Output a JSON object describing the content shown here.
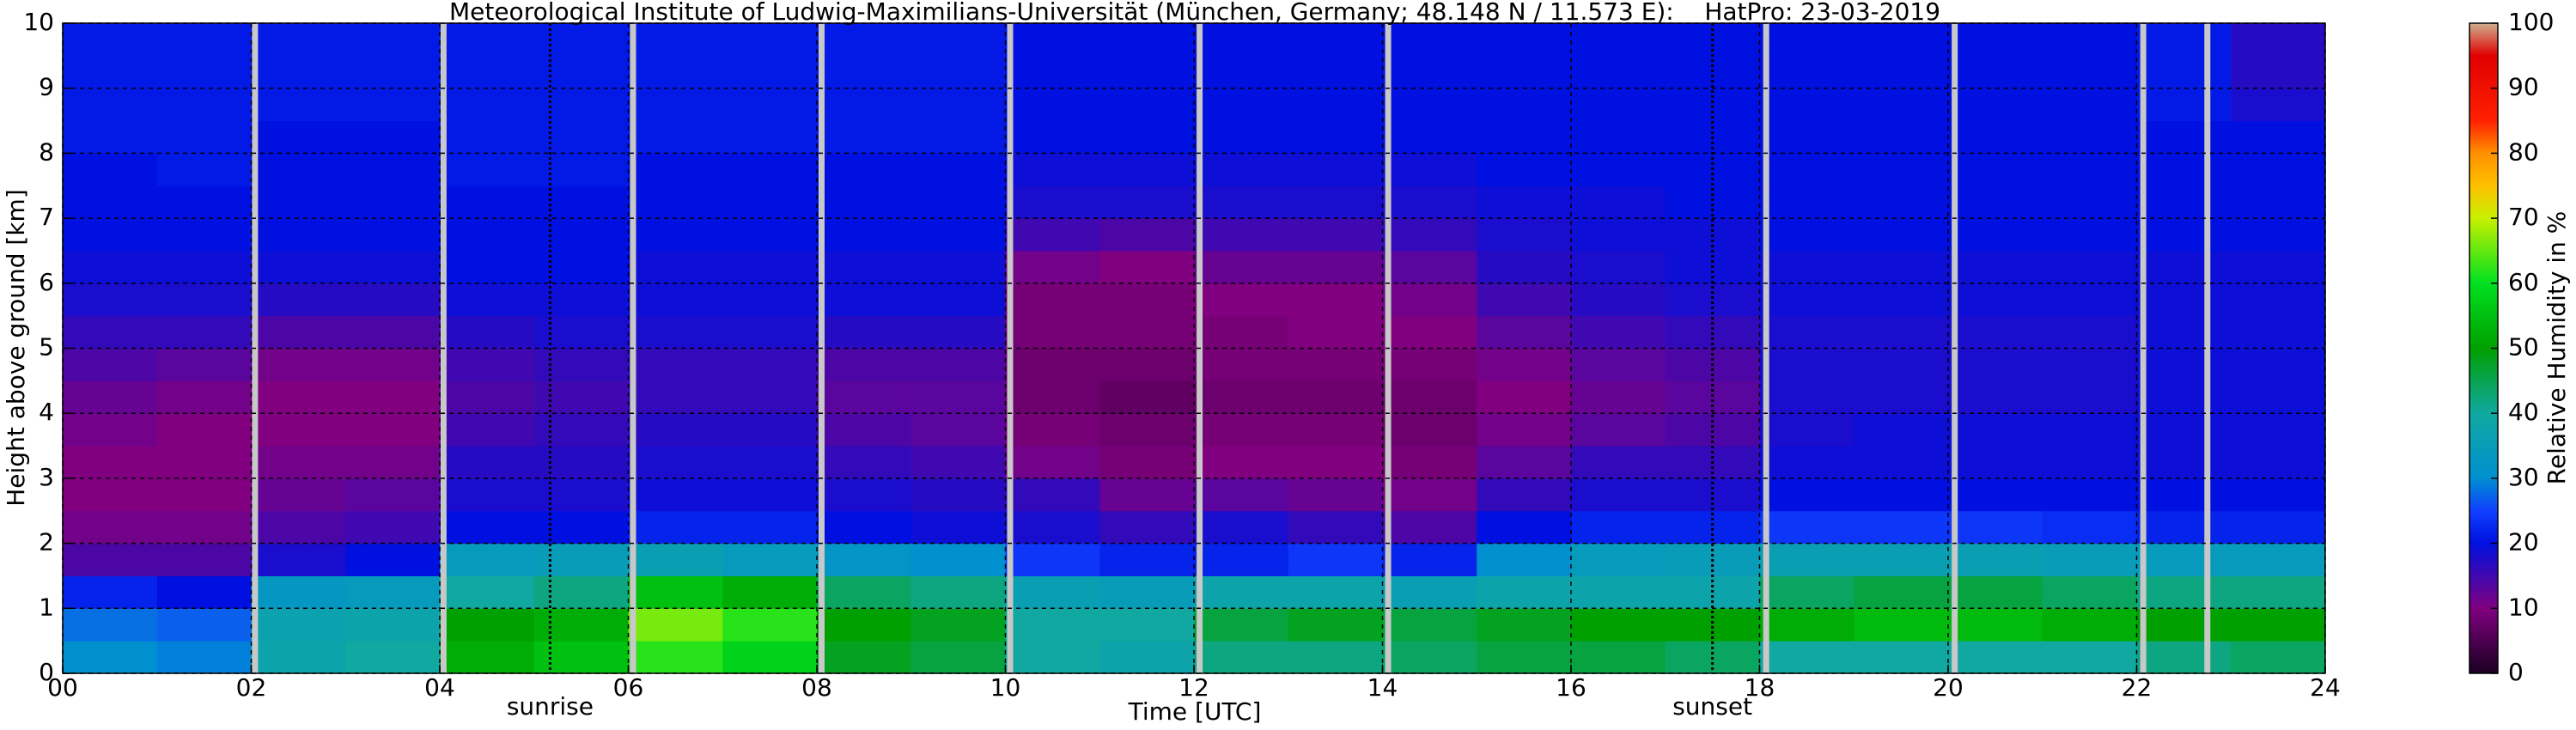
{
  "chart_data": {
    "type": "heatmap",
    "title": "Meteorological Institute of Ludwig-Maximilians-Universität (München, Germany; 48.148 N / 11.573 E):    HatPro: 23-03-2019",
    "xlabel": "Time [UTC]",
    "ylabel": "Height above ground [km]",
    "colorbar_label": "Relative Humidity in %",
    "x": [
      0.5,
      1.5,
      2.5,
      3.5,
      4.5,
      5.5,
      6.5,
      7.5,
      8.5,
      9.5,
      10.5,
      11.5,
      12.5,
      13.5,
      14.5,
      15.5,
      16.5,
      17.5,
      18.5,
      19.5,
      20.5,
      21.5,
      22.5,
      23.5
    ],
    "y": [
      0.25,
      0.75,
      1.25,
      1.75,
      2.25,
      2.75,
      3.25,
      3.75,
      4.25,
      4.75,
      5.25,
      5.75,
      6.25,
      6.75,
      7.25,
      7.75,
      8.25,
      8.75,
      9.25,
      9.75
    ],
    "z": [
      [
        30,
        28,
        22,
        14,
        11,
        10,
        10,
        11,
        12,
        14,
        16,
        18,
        19,
        20,
        20,
        20,
        21,
        21,
        21,
        21
      ],
      [
        29,
        27,
        20,
        14,
        11,
        10,
        10,
        10,
        11,
        13,
        16,
        18,
        19,
        20,
        20,
        21,
        21,
        21,
        21,
        21
      ],
      [
        38,
        37,
        33,
        18,
        14,
        12,
        11,
        10,
        10,
        11,
        14,
        17,
        19,
        20,
        20,
        20,
        20,
        21,
        21,
        21
      ],
      [
        40,
        38,
        34,
        20,
        15,
        13,
        11,
        10,
        10,
        11,
        14,
        17,
        19,
        20,
        20,
        20,
        20,
        21,
        21,
        21
      ],
      [
        52,
        50,
        40,
        34,
        20,
        18,
        17,
        15,
        14,
        15,
        17,
        19,
        20,
        20,
        20,
        21,
        21,
        21,
        21,
        21
      ],
      [
        55,
        52,
        42,
        35,
        20,
        18,
        17,
        16,
        15,
        16,
        18,
        19,
        20,
        20,
        20,
        21,
        21,
        21,
        21,
        21
      ],
      [
        62,
        66,
        55,
        36,
        22,
        19,
        18,
        17,
        16,
        16,
        18,
        19,
        19,
        20,
        20,
        20,
        21,
        21,
        21,
        21
      ],
      [
        58,
        62,
        52,
        34,
        22,
        19,
        18,
        17,
        16,
        16,
        18,
        19,
        19,
        20,
        20,
        20,
        21,
        21,
        21,
        21
      ],
      [
        48,
        50,
        44,
        32,
        20,
        18,
        16,
        14,
        13,
        14,
        17,
        19,
        19,
        20,
        20,
        20,
        21,
        21,
        21,
        21
      ],
      [
        46,
        48,
        42,
        30,
        19,
        17,
        15,
        13,
        13,
        14,
        17,
        19,
        19,
        20,
        20,
        20,
        21,
        21,
        21,
        21
      ],
      [
        40,
        40,
        36,
        24,
        18,
        16,
        11,
        9,
        8,
        8,
        9,
        9,
        11,
        15,
        18,
        19,
        20,
        20,
        20,
        20
      ],
      [
        38,
        40,
        35,
        22,
        16,
        12,
        9,
        8,
        7,
        8,
        9,
        9,
        10,
        14,
        18,
        19,
        20,
        20,
        20,
        20
      ],
      [
        42,
        46,
        38,
        22,
        18,
        13,
        10,
        9,
        8,
        9,
        9,
        10,
        12,
        15,
        18,
        19,
        20,
        20,
        20,
        20
      ],
      [
        42,
        48,
        38,
        24,
        16,
        12,
        10,
        9,
        8,
        9,
        10,
        10,
        12,
        15,
        18,
        19,
        20,
        20,
        20,
        20
      ],
      [
        44,
        46,
        36,
        22,
        14,
        11,
        9,
        8,
        8,
        9,
        10,
        11,
        13,
        16,
        18,
        19,
        20,
        20,
        20,
        20
      ],
      [
        46,
        48,
        38,
        30,
        20,
        16,
        13,
        11,
        10,
        11,
        13,
        15,
        17,
        18,
        19,
        20,
        20,
        20,
        20,
        20
      ],
      [
        46,
        50,
        38,
        34,
        22,
        18,
        16,
        13,
        12,
        13,
        15,
        17,
        18,
        19,
        19,
        20,
        20,
        20,
        20,
        20
      ],
      [
        44,
        50,
        38,
        35,
        22,
        18,
        16,
        14,
        13,
        14,
        16,
        18,
        19,
        19,
        20,
        20,
        20,
        20,
        20,
        20
      ],
      [
        40,
        52,
        44,
        36,
        24,
        20,
        19,
        18,
        18,
        18,
        18,
        19,
        19,
        20,
        20,
        20,
        20,
        20,
        20,
        20
      ],
      [
        40,
        54,
        46,
        36,
        24,
        20,
        19,
        19,
        18,
        18,
        18,
        19,
        19,
        20,
        20,
        20,
        20,
        20,
        20,
        20
      ],
      [
        40,
        54,
        46,
        36,
        24,
        20,
        19,
        19,
        18,
        18,
        18,
        19,
        19,
        20,
        20,
        20,
        20,
        20,
        20,
        20
      ],
      [
        40,
        52,
        44,
        35,
        23,
        20,
        19,
        19,
        18,
        18,
        18,
        19,
        19,
        20,
        20,
        20,
        20,
        20,
        20,
        20
      ],
      [
        42,
        50,
        42,
        34,
        22,
        20,
        19,
        19,
        19,
        19,
        19,
        19,
        19,
        20,
        20,
        20,
        20,
        21,
        21,
        21
      ],
      [
        44,
        50,
        42,
        34,
        22,
        20,
        19,
        19,
        19,
        19,
        19,
        19,
        19,
        20,
        20,
        20,
        20,
        18,
        17,
        17
      ]
    ],
    "xlim": [
      0,
      24
    ],
    "ylim": [
      0,
      10
    ],
    "xticks": [
      {
        "value": 0,
        "label": "00"
      },
      {
        "value": 2,
        "label": "02"
      },
      {
        "value": 4,
        "label": "04"
      },
      {
        "value": 6,
        "label": "06"
      },
      {
        "value": 8,
        "label": "08"
      },
      {
        "value": 10,
        "label": "10"
      },
      {
        "value": 12,
        "label": "12"
      },
      {
        "value": 14,
        "label": "14"
      },
      {
        "value": 16,
        "label": "16"
      },
      {
        "value": 18,
        "label": "18"
      },
      {
        "value": 20,
        "label": "20"
      },
      {
        "value": 22,
        "label": "22"
      },
      {
        "value": 24,
        "label": "24"
      }
    ],
    "yticks": [
      0,
      1,
      2,
      3,
      4,
      5,
      6,
      7,
      8,
      9,
      10
    ],
    "clim": [
      0,
      100
    ],
    "cticks": [
      0,
      10,
      20,
      30,
      40,
      50,
      60,
      70,
      80,
      90,
      100
    ],
    "colorscale": [
      [
        0,
        "#1a0020"
      ],
      [
        10,
        "#800080"
      ],
      [
        20,
        "#0010e0"
      ],
      [
        25,
        "#1040ff"
      ],
      [
        30,
        "#0090d0"
      ],
      [
        40,
        "#10a8a0"
      ],
      [
        50,
        "#00a000"
      ],
      [
        60,
        "#00e020"
      ],
      [
        70,
        "#c8f000"
      ],
      [
        75,
        "#ffc000"
      ],
      [
        80,
        "#ff9000"
      ],
      [
        85,
        "#ff2000"
      ],
      [
        95,
        "#e00000"
      ],
      [
        100,
        "#d0b090"
      ]
    ],
    "gaps": [
      2.04,
      4.04,
      6.05,
      8.05,
      10.05,
      12.06,
      14.06,
      18.07,
      20.07,
      22.07,
      22.75
    ],
    "gap_color": "#c8c8c8",
    "grid": true,
    "annotations": [
      {
        "text": "sunrise",
        "x": 5.17
      },
      {
        "text": "sunset",
        "x": 17.5
      }
    ]
  }
}
